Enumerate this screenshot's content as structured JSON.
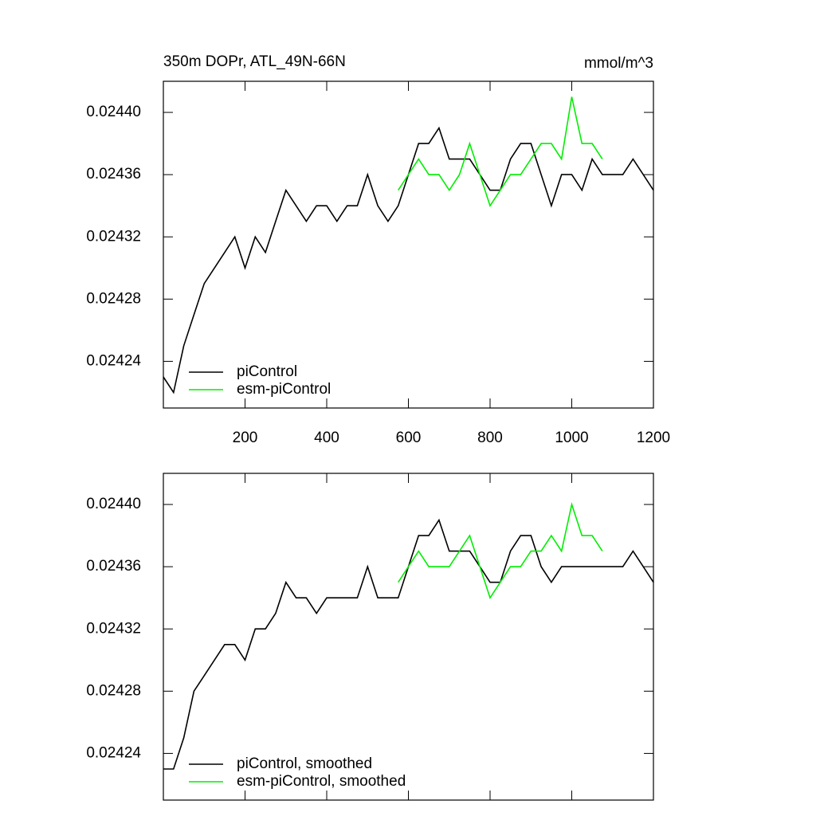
{
  "chart_data": [
    {
      "type": "line",
      "title": "350m DOPr, ATL_49N-66N",
      "units": "mmol/m^3",
      "x": [
        0,
        25,
        50,
        75,
        100,
        125,
        150,
        175,
        200,
        225,
        250,
        275,
        300,
        325,
        350,
        375,
        400,
        425,
        450,
        475,
        500,
        525,
        550,
        575,
        600,
        625,
        650,
        675,
        700,
        725,
        750,
        775,
        800,
        825,
        850,
        875,
        900,
        925,
        950,
        975,
        1000,
        1025,
        1050,
        1075,
        1100,
        1125,
        1150,
        1175,
        1200
      ],
      "series": [
        {
          "name": "piControl",
          "color": "#000000",
          "values": [
            0.02423,
            0.02422,
            0.02425,
            0.02427,
            0.02429,
            0.0243,
            0.02431,
            0.02432,
            0.0243,
            0.02432,
            0.02431,
            0.02433,
            0.02435,
            0.02434,
            0.02433,
            0.02434,
            0.02434,
            0.02433,
            0.02434,
            0.02434,
            0.02436,
            0.02434,
            0.02433,
            0.02434,
            0.02436,
            0.02438,
            0.02438,
            0.02439,
            0.02437,
            0.02437,
            0.02437,
            0.02436,
            0.02435,
            0.02435,
            0.02437,
            0.02438,
            0.02438,
            0.02436,
            0.02434,
            0.02436,
            0.02436,
            0.02435,
            0.02437,
            0.02436,
            0.02436,
            0.02436,
            0.02437,
            0.02436,
            0.02435
          ]
        },
        {
          "name": "esm-piControl",
          "color": "#00ee00",
          "values": [
            null,
            null,
            null,
            null,
            null,
            null,
            null,
            null,
            null,
            null,
            null,
            null,
            null,
            null,
            null,
            null,
            null,
            null,
            null,
            null,
            null,
            null,
            null,
            0.02435,
            0.02436,
            0.02437,
            0.02436,
            0.02436,
            0.02435,
            0.02436,
            0.02438,
            0.02436,
            0.02434,
            0.02435,
            0.02436,
            0.02436,
            0.02437,
            0.02438,
            0.02438,
            0.02437,
            0.02441,
            0.02438,
            0.02438,
            0.02437,
            null,
            null,
            null,
            null,
            null
          ]
        }
      ],
      "xlim": [
        0,
        1200
      ],
      "xticks": [
        200,
        400,
        600,
        800,
        1000,
        1200
      ],
      "ylim": [
        0.02421,
        0.02442
      ],
      "yticks": [
        {
          "value": 0.02424,
          "label": "0.02424"
        },
        {
          "value": 0.02428,
          "label": "0.02428"
        },
        {
          "value": 0.02432,
          "label": "0.02432"
        },
        {
          "value": 0.02436,
          "label": "0.02436"
        },
        {
          "value": 0.0244,
          "label": "0.02440"
        }
      ]
    },
    {
      "type": "line",
      "x": [
        0,
        25,
        50,
        75,
        100,
        125,
        150,
        175,
        200,
        225,
        250,
        275,
        300,
        325,
        350,
        375,
        400,
        425,
        450,
        475,
        500,
        525,
        550,
        575,
        600,
        625,
        650,
        675,
        700,
        725,
        750,
        775,
        800,
        825,
        850,
        875,
        900,
        925,
        950,
        975,
        1000,
        1025,
        1050,
        1075,
        1100,
        1125,
        1150,
        1175,
        1200
      ],
      "series": [
        {
          "name": "piControl, smoothed",
          "color": "#000000",
          "values": [
            0.02423,
            0.02423,
            0.02425,
            0.02428,
            0.02429,
            0.0243,
            0.02431,
            0.02431,
            0.0243,
            0.02432,
            0.02432,
            0.02433,
            0.02435,
            0.02434,
            0.02434,
            0.02433,
            0.02434,
            0.02434,
            0.02434,
            0.02434,
            0.02436,
            0.02434,
            0.02434,
            0.02434,
            0.02436,
            0.02438,
            0.02438,
            0.02439,
            0.02437,
            0.02437,
            0.02437,
            0.02436,
            0.02435,
            0.02435,
            0.02437,
            0.02438,
            0.02438,
            0.02436,
            0.02435,
            0.02436,
            0.02436,
            0.02436,
            0.02436,
            0.02436,
            0.02436,
            0.02436,
            0.02437,
            0.02436,
            0.02435
          ]
        },
        {
          "name": "esm-piControl, smoothed",
          "color": "#00ee00",
          "values": [
            null,
            null,
            null,
            null,
            null,
            null,
            null,
            null,
            null,
            null,
            null,
            null,
            null,
            null,
            null,
            null,
            null,
            null,
            null,
            null,
            null,
            null,
            null,
            0.02435,
            0.02436,
            0.02437,
            0.02436,
            0.02436,
            0.02436,
            0.02437,
            0.02438,
            0.02436,
            0.02434,
            0.02435,
            0.02436,
            0.02436,
            0.02437,
            0.02437,
            0.02438,
            0.02437,
            0.0244,
            0.02438,
            0.02438,
            0.02437,
            null,
            null,
            null,
            null,
            null
          ]
        }
      ],
      "xlim": [
        0,
        1200
      ],
      "xticks": [
        200,
        400,
        600,
        800,
        1000,
        1200
      ],
      "ylim": [
        0.02421,
        0.02442
      ],
      "yticks": [
        {
          "value": 0.02424,
          "label": "0.02424"
        },
        {
          "value": 0.02428,
          "label": "0.02428"
        },
        {
          "value": 0.02432,
          "label": "0.02432"
        },
        {
          "value": 0.02436,
          "label": "0.02436"
        },
        {
          "value": 0.0244,
          "label": "0.02440"
        }
      ]
    }
  ]
}
